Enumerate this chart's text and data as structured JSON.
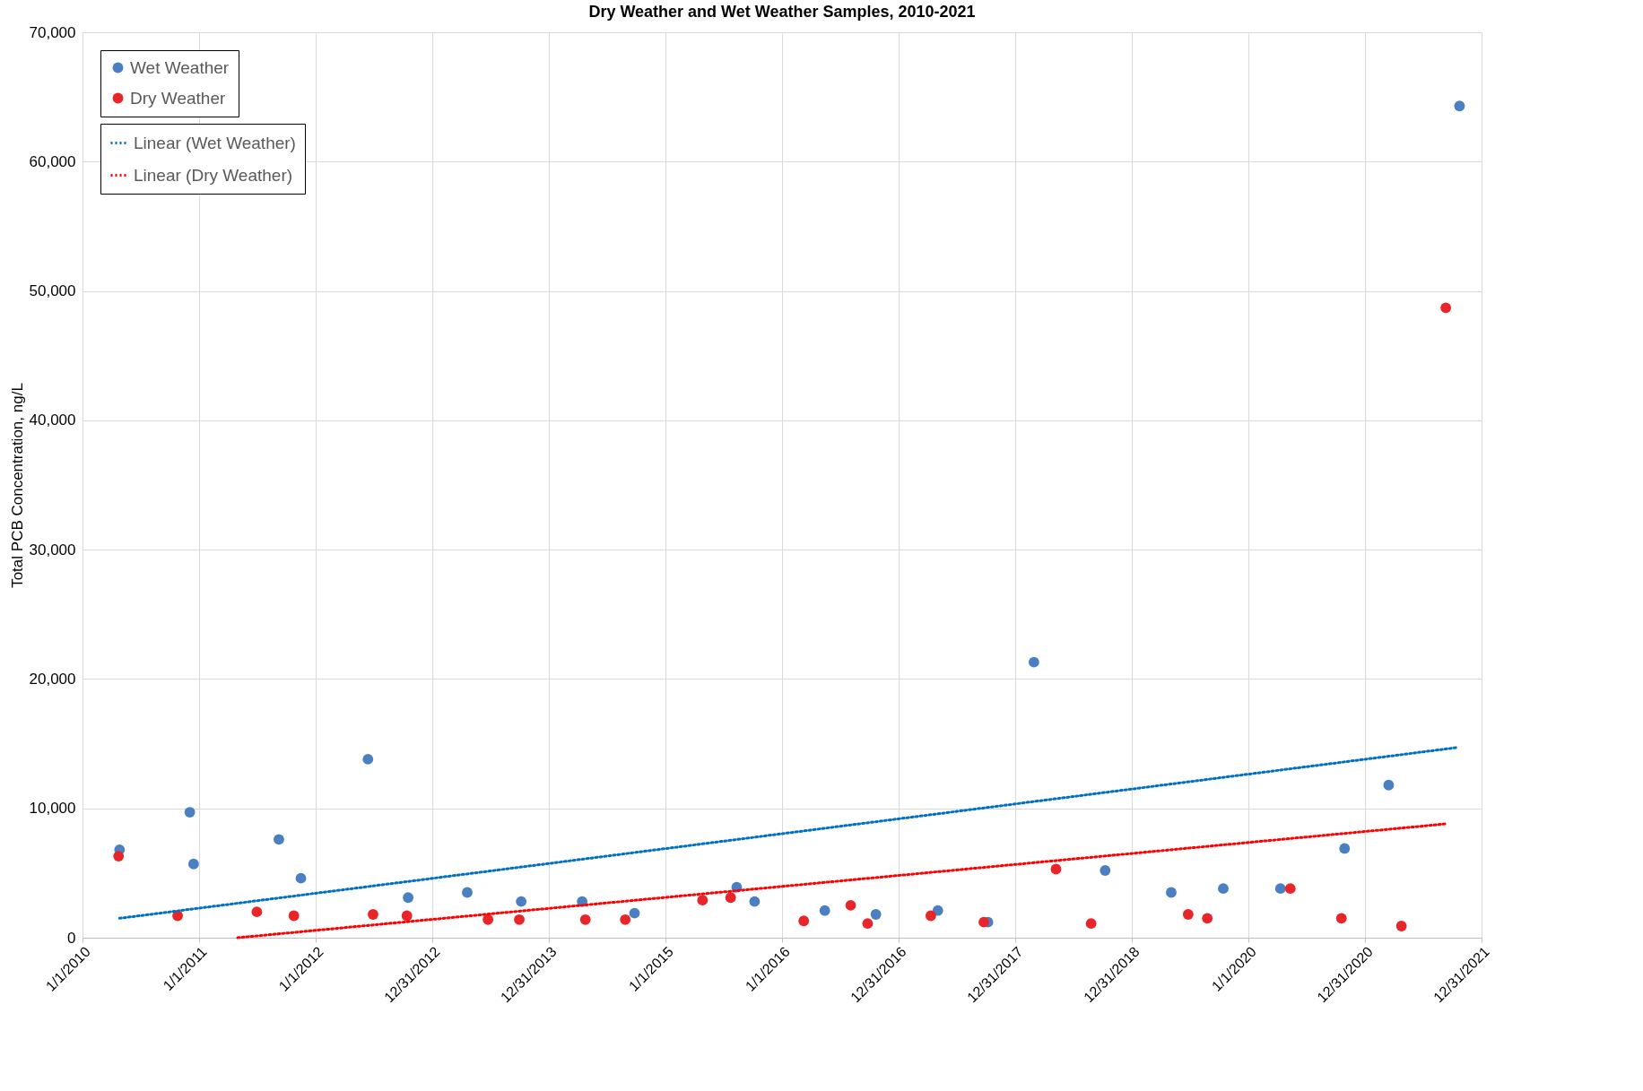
{
  "chart_data": {
    "type": "scatter",
    "title": "Dry Weather and Wet Weather Samples, 2010-2021",
    "ylabel": "Total PCB Concentration, ng/L",
    "xlim": [
      "2010-01-01",
      "2021-12-31"
    ],
    "xticks": [
      {
        "value": "2010-01-01",
        "label": "1/1/2010"
      },
      {
        "value": "2011-01-01",
        "label": "1/1/2011"
      },
      {
        "value": "2012-01-01",
        "label": "1/1/2012"
      },
      {
        "value": "2012-12-31",
        "label": "12/31/2012"
      },
      {
        "value": "2013-12-31",
        "label": "12/31/2013"
      },
      {
        "value": "2015-01-01",
        "label": "1/1/2015"
      },
      {
        "value": "2016-01-01",
        "label": "1/1/2016"
      },
      {
        "value": "2016-12-31",
        "label": "12/31/2016"
      },
      {
        "value": "2017-12-31",
        "label": "12/31/2017"
      },
      {
        "value": "2018-12-31",
        "label": "12/31/2018"
      },
      {
        "value": "2020-01-01",
        "label": "1/1/2020"
      },
      {
        "value": "2020-12-31",
        "label": "12/31/2020"
      },
      {
        "value": "2021-12-31",
        "label": "12/31/2021"
      }
    ],
    "ylim": [
      0,
      70000
    ],
    "yticks": [
      0,
      {
        "value": 10000,
        "label": "10,000"
      },
      {
        "value": 20000,
        "label": "20,000"
      },
      {
        "value": 30000,
        "label": "30,000"
      },
      {
        "value": 40000,
        "label": "40,000"
      },
      {
        "value": 50000,
        "label": "50,000"
      },
      {
        "value": 60000,
        "label": "60,000"
      },
      {
        "value": 70000,
        "label": "70,000"
      }
    ],
    "grid": true,
    "legend": "top left",
    "series": [
      {
        "name": "Wet Weather",
        "type": "scatter",
        "marker": "circle",
        "color": "#4a7fc1",
        "x": [
          "2010-04-27",
          "2010-12-03",
          "2010-12-15",
          "2011-09-08",
          "2011-11-16",
          "2012-06-13",
          "2012-10-17",
          "2013-04-20",
          "2013-10-06",
          "2014-04-15",
          "2014-09-26",
          "2015-08-12",
          "2015-10-07",
          "2016-05-14",
          "2016-10-21",
          "2017-05-03",
          "2017-10-07",
          "2018-02-28",
          "2018-10-09",
          "2019-05-04",
          "2019-10-14",
          "2020-04-10",
          "2020-10-28",
          "2021-03-15",
          "2021-10-23"
        ],
        "values": [
          6800,
          9700,
          5700,
          7600,
          4600,
          13800,
          3100,
          3500,
          2800,
          2800,
          1900,
          3900,
          2800,
          2100,
          1800,
          2100,
          1200,
          21300,
          5200,
          3500,
          3800,
          3800,
          6900,
          11800,
          64300
        ]
      },
      {
        "name": "Dry Weather",
        "type": "scatter",
        "marker": "circle",
        "color": "#e8262a",
        "x": [
          "2010-04-24",
          "2010-10-26",
          "2011-07-01",
          "2011-10-25",
          "2012-06-29",
          "2012-10-13",
          "2013-06-24",
          "2013-09-30",
          "2014-04-25",
          "2014-08-28",
          "2015-04-27",
          "2015-07-24",
          "2016-03-09",
          "2016-08-03",
          "2016-09-25",
          "2017-04-11",
          "2017-09-24",
          "2018-05-08",
          "2018-08-26",
          "2019-06-26",
          "2019-08-25",
          "2020-05-11",
          "2020-10-18",
          "2021-04-24",
          "2021-09-10"
        ],
        "values": [
          6300,
          1700,
          2000,
          1700,
          1800,
          1700,
          1400,
          1400,
          1400,
          1400,
          2900,
          3100,
          1300,
          2500,
          1100,
          1700,
          1200,
          5300,
          1100,
          1800,
          1500,
          3800,
          1500,
          900,
          48700
        ]
      },
      {
        "name": "Linear (Wet Weather)",
        "type": "line",
        "marker": "none",
        "line_style": "dotted",
        "color": "#0070c0",
        "x": [
          "2010-04-27",
          "2021-10-14"
        ],
        "values": [
          1500,
          14700
        ]
      },
      {
        "name": "Linear (Dry Weather)",
        "type": "line",
        "marker": "none",
        "line_style": "dotted",
        "color": "#ff0000",
        "x": [
          "2011-05-02",
          "2021-09-10"
        ],
        "values": [
          0,
          8800
        ]
      }
    ]
  }
}
